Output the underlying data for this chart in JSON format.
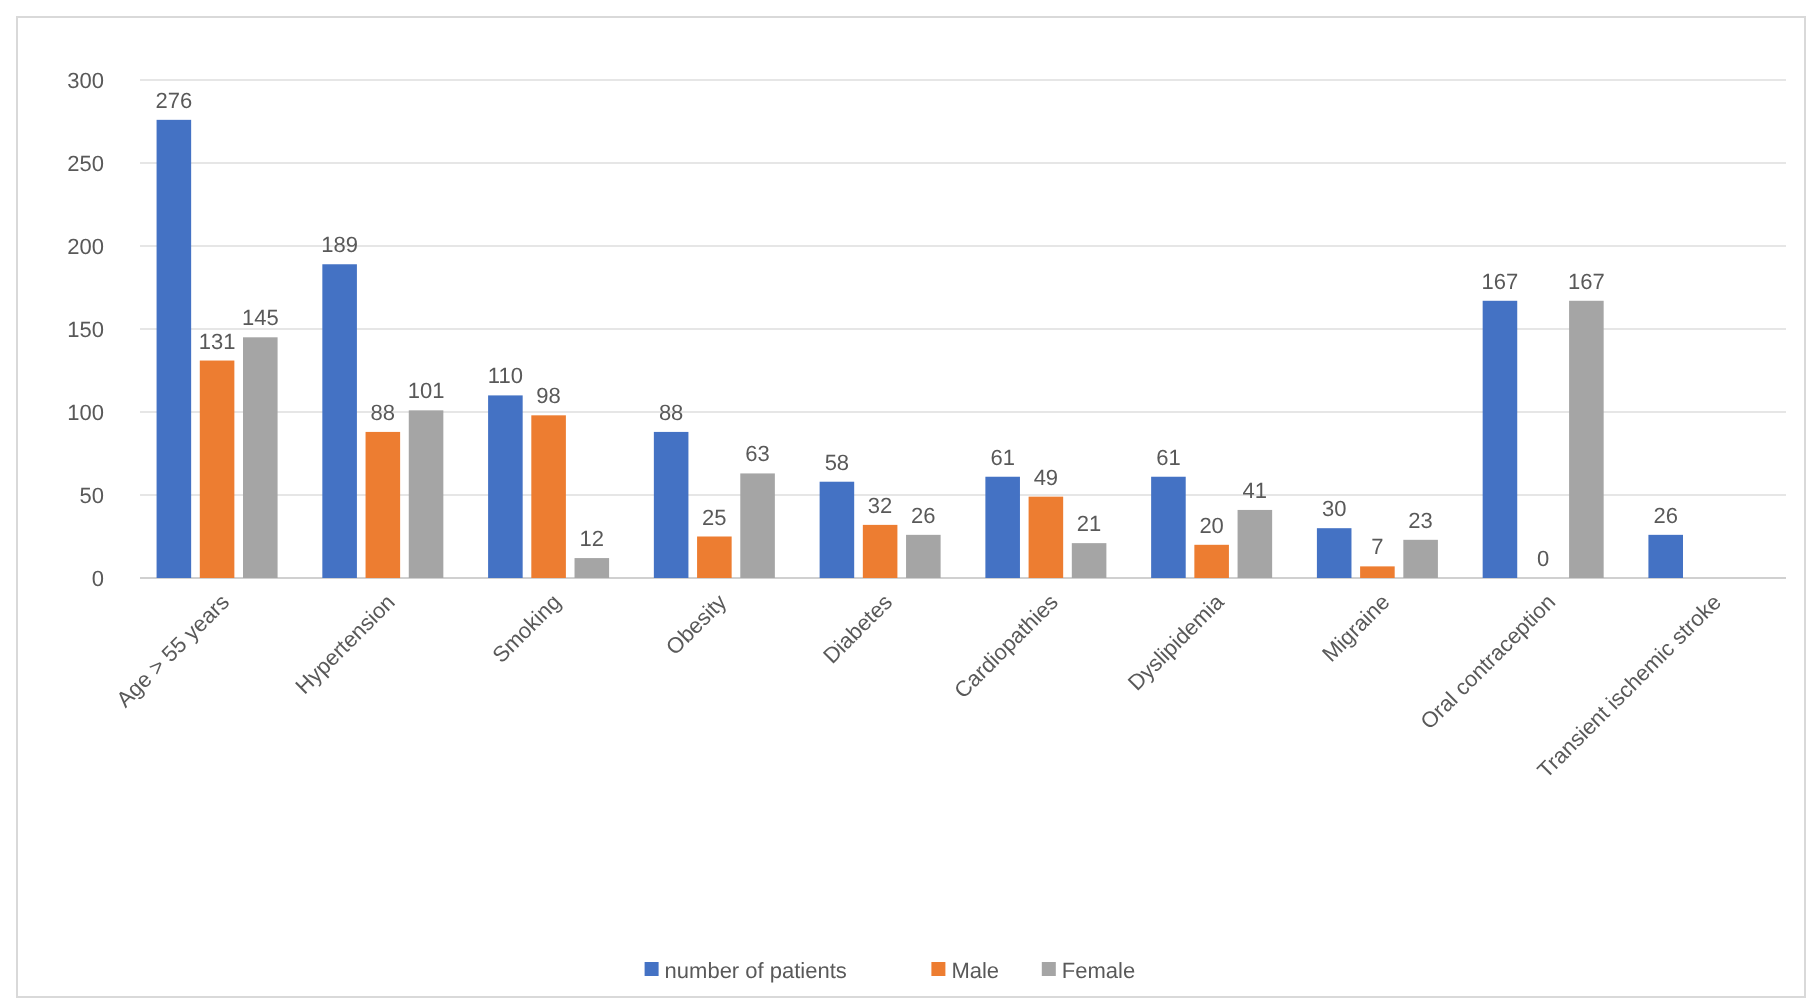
{
  "chart_data": {
    "type": "bar",
    "categories": [
      "Age > 55 years",
      "Hypertension",
      "Smoking",
      "Obesity",
      "Diabetes",
      "Cardiopathies",
      "Dyslipidemia",
      "Migraine",
      "Oral contraception",
      "Transient ischemic stroke"
    ],
    "series": [
      {
        "name": "number of patients",
        "color": "#4472c4",
        "values": [
          276,
          189,
          110,
          88,
          58,
          61,
          61,
          30,
          167,
          26
        ]
      },
      {
        "name": "Male",
        "color": "#ed7d31",
        "values": [
          131,
          88,
          98,
          25,
          32,
          49,
          20,
          7,
          0,
          null
        ]
      },
      {
        "name": "Female",
        "color": "#a5a5a5",
        "values": [
          145,
          101,
          12,
          63,
          26,
          21,
          41,
          23,
          167,
          null
        ]
      }
    ],
    "ylim": [
      0,
      300
    ],
    "yticks": [
      0,
      50,
      100,
      150,
      200,
      250,
      300
    ],
    "grid": "y",
    "legend": "bottom",
    "data_labels": true
  }
}
